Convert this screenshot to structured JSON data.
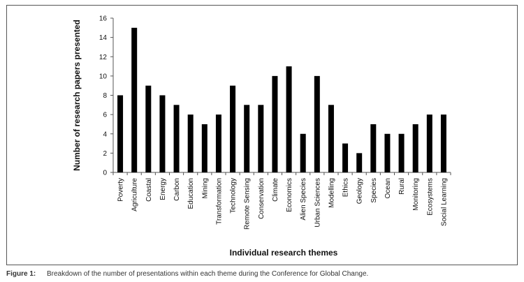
{
  "chart_data": {
    "type": "bar",
    "title": "",
    "xlabel": "Individual research themes",
    "ylabel": "Number of research papers presented",
    "ylim": [
      0,
      16
    ],
    "yticks": [
      "0",
      "2",
      "4",
      "6",
      "8",
      "10",
      "12",
      "14",
      "16"
    ],
    "grid": false,
    "bar_color": "#000000",
    "categories": [
      "Poverty",
      "Agriculture",
      "Coastal",
      "Energy",
      "Carbon",
      "Education",
      "Mining",
      "Transformation",
      "Technology",
      "Remote Sensing",
      "Conservation",
      "Climate",
      "Economics",
      "Alien Species",
      "Urban Sciences",
      "Modelling",
      "Ethics",
      "Geology",
      "Species",
      "Ocean",
      "Rural",
      "Monitoring",
      "Ecosystems",
      "Social Learning"
    ],
    "values": [
      8,
      15,
      9,
      8,
      7,
      6,
      5,
      6,
      9,
      7,
      7,
      10,
      11,
      4,
      10,
      7,
      3,
      2,
      5,
      4,
      4,
      5,
      6,
      6
    ]
  },
  "caption": {
    "label": "Figure 1:",
    "text": "Breakdown of the number of presentations within each theme during the Conference for Global Change."
  }
}
